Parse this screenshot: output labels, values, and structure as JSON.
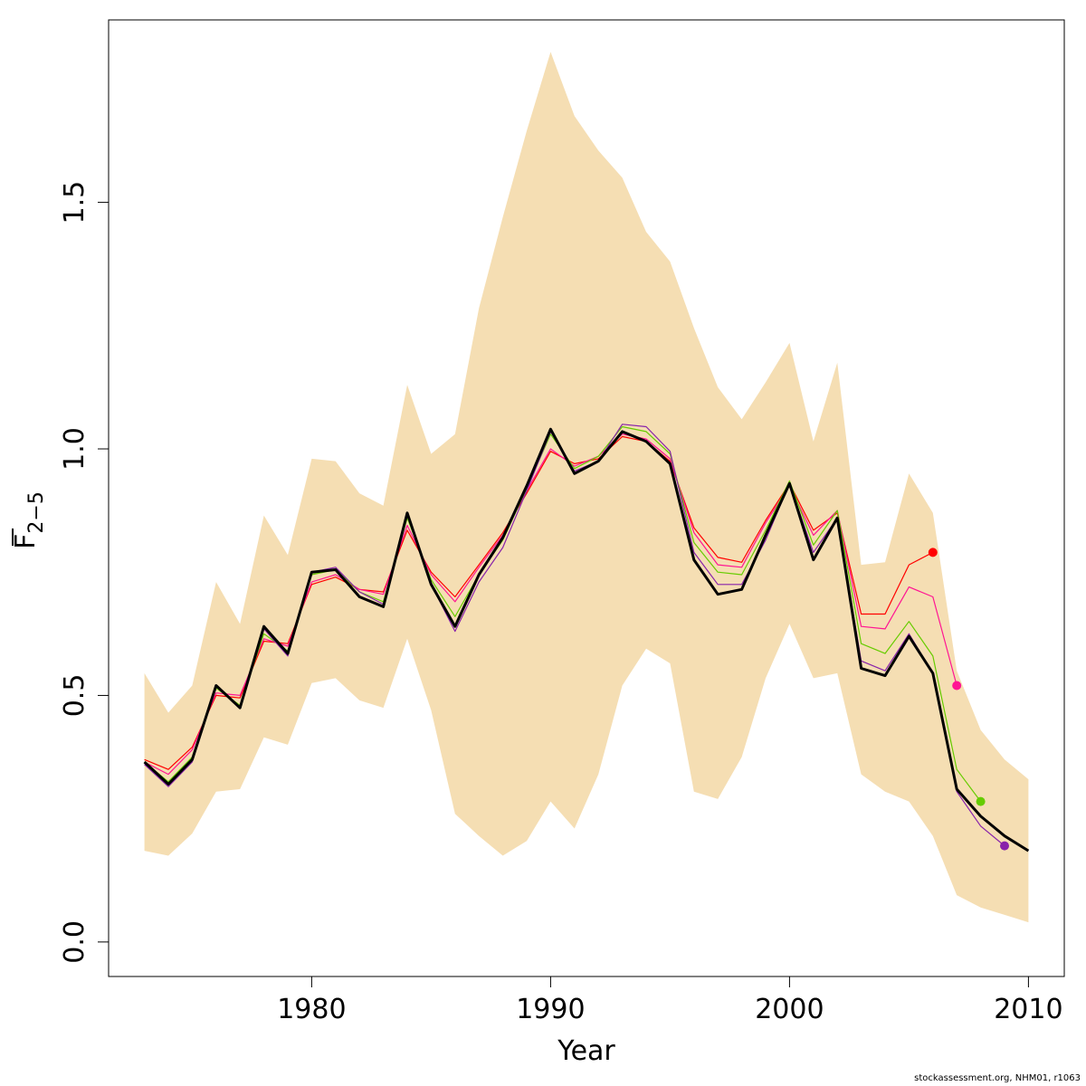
{
  "chart_data": {
    "type": "line",
    "xlabel": "Year",
    "ylabel_main": "F",
    "ylabel_sub": "2−5",
    "xlim": [
      1971.5,
      2011.5
    ],
    "ylim": [
      -0.07,
      1.87
    ],
    "x_ticks": [
      1980,
      1990,
      2000,
      2010
    ],
    "y_ticks": [
      0.0,
      0.5,
      1.0,
      1.5
    ],
    "x_tick_labels": [
      "1980",
      "1990",
      "2000",
      "2010"
    ],
    "y_tick_labels": [
      "0.0",
      "0.5",
      "1.0",
      "1.5"
    ],
    "band": {
      "color": "#f5deb3",
      "x": [
        1973,
        1974,
        1975,
        1976,
        1977,
        1978,
        1979,
        1980,
        1981,
        1982,
        1983,
        1984,
        1985,
        1986,
        1987,
        1988,
        1989,
        1990,
        1991,
        1992,
        1993,
        1994,
        1995,
        1996,
        1997,
        1998,
        1999,
        2000,
        2001,
        2002,
        2003,
        2004,
        2005,
        2006,
        2007,
        2008,
        2009,
        2010
      ],
      "upper": [
        0.545,
        0.465,
        0.52,
        0.73,
        0.645,
        0.865,
        0.785,
        0.98,
        0.975,
        0.91,
        0.885,
        1.13,
        0.99,
        1.03,
        1.285,
        1.47,
        1.645,
        1.805,
        1.675,
        1.605,
        1.55,
        1.44,
        1.38,
        1.245,
        1.125,
        1.06,
        1.135,
        1.215,
        1.015,
        1.175,
        0.765,
        0.77,
        0.95,
        0.87,
        0.55,
        0.43,
        0.37,
        0.33
      ],
      "lower": [
        0.185,
        0.175,
        0.22,
        0.305,
        0.31,
        0.415,
        0.4,
        0.525,
        0.535,
        0.49,
        0.475,
        0.615,
        0.47,
        0.26,
        0.215,
        0.175,
        0.205,
        0.285,
        0.23,
        0.34,
        0.52,
        0.595,
        0.565,
        0.305,
        0.29,
        0.375,
        0.535,
        0.645,
        0.535,
        0.545,
        0.34,
        0.305,
        0.285,
        0.215,
        0.095,
        0.07,
        0.055,
        0.04
      ]
    },
    "series": [
      {
        "color": "#ff0000",
        "width": 1.2,
        "x": [
          1973,
          1974,
          1975,
          1976,
          1977,
          1978,
          1979,
          1980,
          1981,
          1982,
          1983,
          1984,
          1985,
          1986,
          1987,
          1988,
          1989,
          1990,
          1991,
          1992,
          1993,
          1994,
          1995,
          1996,
          1997,
          1998,
          1999,
          2000,
          2001,
          2002,
          2003,
          2004,
          2005,
          2006
        ],
        "values": [
          0.37,
          0.35,
          0.395,
          0.5,
          0.495,
          0.61,
          0.605,
          0.725,
          0.74,
          0.715,
          0.71,
          0.835,
          0.75,
          0.7,
          0.765,
          0.83,
          0.91,
          0.995,
          0.97,
          0.98,
          1.025,
          1.015,
          0.975,
          0.84,
          0.78,
          0.77,
          0.855,
          0.93,
          0.835,
          0.87,
          0.665,
          0.665,
          0.765,
          0.79
        ],
        "endpoint": true
      },
      {
        "color": "#ff1493",
        "width": 1.2,
        "x": [
          1973,
          1974,
          1975,
          1976,
          1977,
          1978,
          1979,
          1980,
          1981,
          1982,
          1983,
          1984,
          1985,
          1986,
          1987,
          1988,
          1989,
          1990,
          1991,
          1992,
          1993,
          1994,
          1995,
          1996,
          1997,
          1998,
          1999,
          2000,
          2001,
          2002,
          2003,
          2004,
          2005,
          2006,
          2007
        ],
        "values": [
          0.365,
          0.34,
          0.39,
          0.505,
          0.5,
          0.615,
          0.6,
          0.73,
          0.745,
          0.715,
          0.705,
          0.845,
          0.745,
          0.69,
          0.76,
          0.825,
          0.915,
          1.0,
          0.965,
          0.985,
          1.03,
          1.02,
          0.98,
          0.83,
          0.765,
          0.76,
          0.85,
          0.925,
          0.825,
          0.875,
          0.64,
          0.635,
          0.72,
          0.7,
          0.52
        ],
        "endpoint": true
      },
      {
        "color": "#66cc00",
        "width": 1.2,
        "x": [
          1973,
          1974,
          1975,
          1976,
          1977,
          1978,
          1979,
          1980,
          1981,
          1982,
          1983,
          1984,
          1985,
          1986,
          1987,
          1988,
          1989,
          1990,
          1991,
          1992,
          1993,
          1994,
          1995,
          1996,
          1997,
          1998,
          1999,
          2000,
          2001,
          2002,
          2003,
          2004,
          2005,
          2006,
          2007,
          2008
        ],
        "values": [
          0.365,
          0.325,
          0.375,
          0.515,
          0.48,
          0.625,
          0.59,
          0.745,
          0.755,
          0.71,
          0.69,
          0.86,
          0.735,
          0.66,
          0.745,
          0.815,
          0.92,
          1.03,
          0.96,
          0.985,
          1.045,
          1.035,
          0.99,
          0.81,
          0.75,
          0.745,
          0.835,
          0.935,
          0.805,
          0.875,
          0.605,
          0.585,
          0.65,
          0.58,
          0.35,
          0.285
        ],
        "endpoint": true
      },
      {
        "color": "#8822aa",
        "width": 1.2,
        "x": [
          1973,
          1974,
          1975,
          1976,
          1977,
          1978,
          1979,
          1980,
          1981,
          1982,
          1983,
          1984,
          1985,
          1986,
          1987,
          1988,
          1989,
          1990,
          1991,
          1992,
          1993,
          1994,
          1995,
          1996,
          1997,
          1998,
          1999,
          2000,
          2001,
          2002,
          2003,
          2004,
          2005,
          2006,
          2007,
          2008,
          2009
        ],
        "values": [
          0.36,
          0.315,
          0.365,
          0.52,
          0.475,
          0.635,
          0.58,
          0.75,
          0.76,
          0.71,
          0.685,
          0.865,
          0.725,
          0.63,
          0.73,
          0.8,
          0.915,
          1.035,
          0.955,
          0.975,
          1.05,
          1.045,
          0.995,
          0.79,
          0.725,
          0.725,
          0.815,
          0.93,
          0.79,
          0.86,
          0.57,
          0.55,
          0.625,
          0.545,
          0.305,
          0.235,
          0.195
        ],
        "endpoint": true
      },
      {
        "color": "#000000",
        "width": 3.0,
        "x": [
          1973,
          1974,
          1975,
          1976,
          1977,
          1978,
          1979,
          1980,
          1981,
          1982,
          1983,
          1984,
          1985,
          1986,
          1987,
          1988,
          1989,
          1990,
          1991,
          1992,
          1993,
          1994,
          1995,
          1996,
          1997,
          1998,
          1999,
          2000,
          2001,
          2002,
          2003,
          2004,
          2005,
          2006,
          2007,
          2008,
          2009,
          2010
        ],
        "values": [
          0.365,
          0.32,
          0.37,
          0.52,
          0.475,
          0.64,
          0.585,
          0.75,
          0.755,
          0.7,
          0.68,
          0.87,
          0.725,
          0.64,
          0.745,
          0.82,
          0.925,
          1.04,
          0.95,
          0.975,
          1.035,
          1.015,
          0.97,
          0.775,
          0.705,
          0.715,
          0.825,
          0.93,
          0.775,
          0.86,
          0.555,
          0.54,
          0.62,
          0.545,
          0.31,
          0.255,
          0.215,
          0.185
        ],
        "endpoint": false
      }
    ]
  },
  "footer": "stockassessment.org, NHM01, r1063"
}
